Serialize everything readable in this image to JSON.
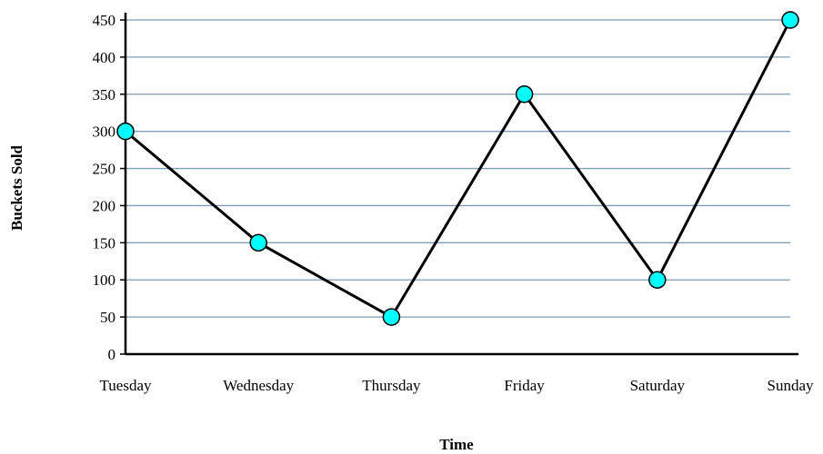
{
  "chart_data": {
    "type": "line",
    "title": "",
    "xlabel": "Time",
    "ylabel": "Buckets Sold",
    "categories": [
      "Tuesday",
      "Wednesday",
      "Thursday",
      "Friday",
      "Saturday",
      "Sunday"
    ],
    "series": [
      {
        "values": [
          300,
          150,
          50,
          350,
          100,
          450
        ]
      }
    ],
    "ylim": [
      0,
      450
    ],
    "yticks": [
      0,
      50,
      100,
      150,
      200,
      250,
      300,
      350,
      400,
      450
    ],
    "grid": true,
    "legend": "none",
    "colors": {
      "line": "#000000",
      "marker_fill": "#00FFFF",
      "gridline": "#7F9DB9"
    }
  }
}
